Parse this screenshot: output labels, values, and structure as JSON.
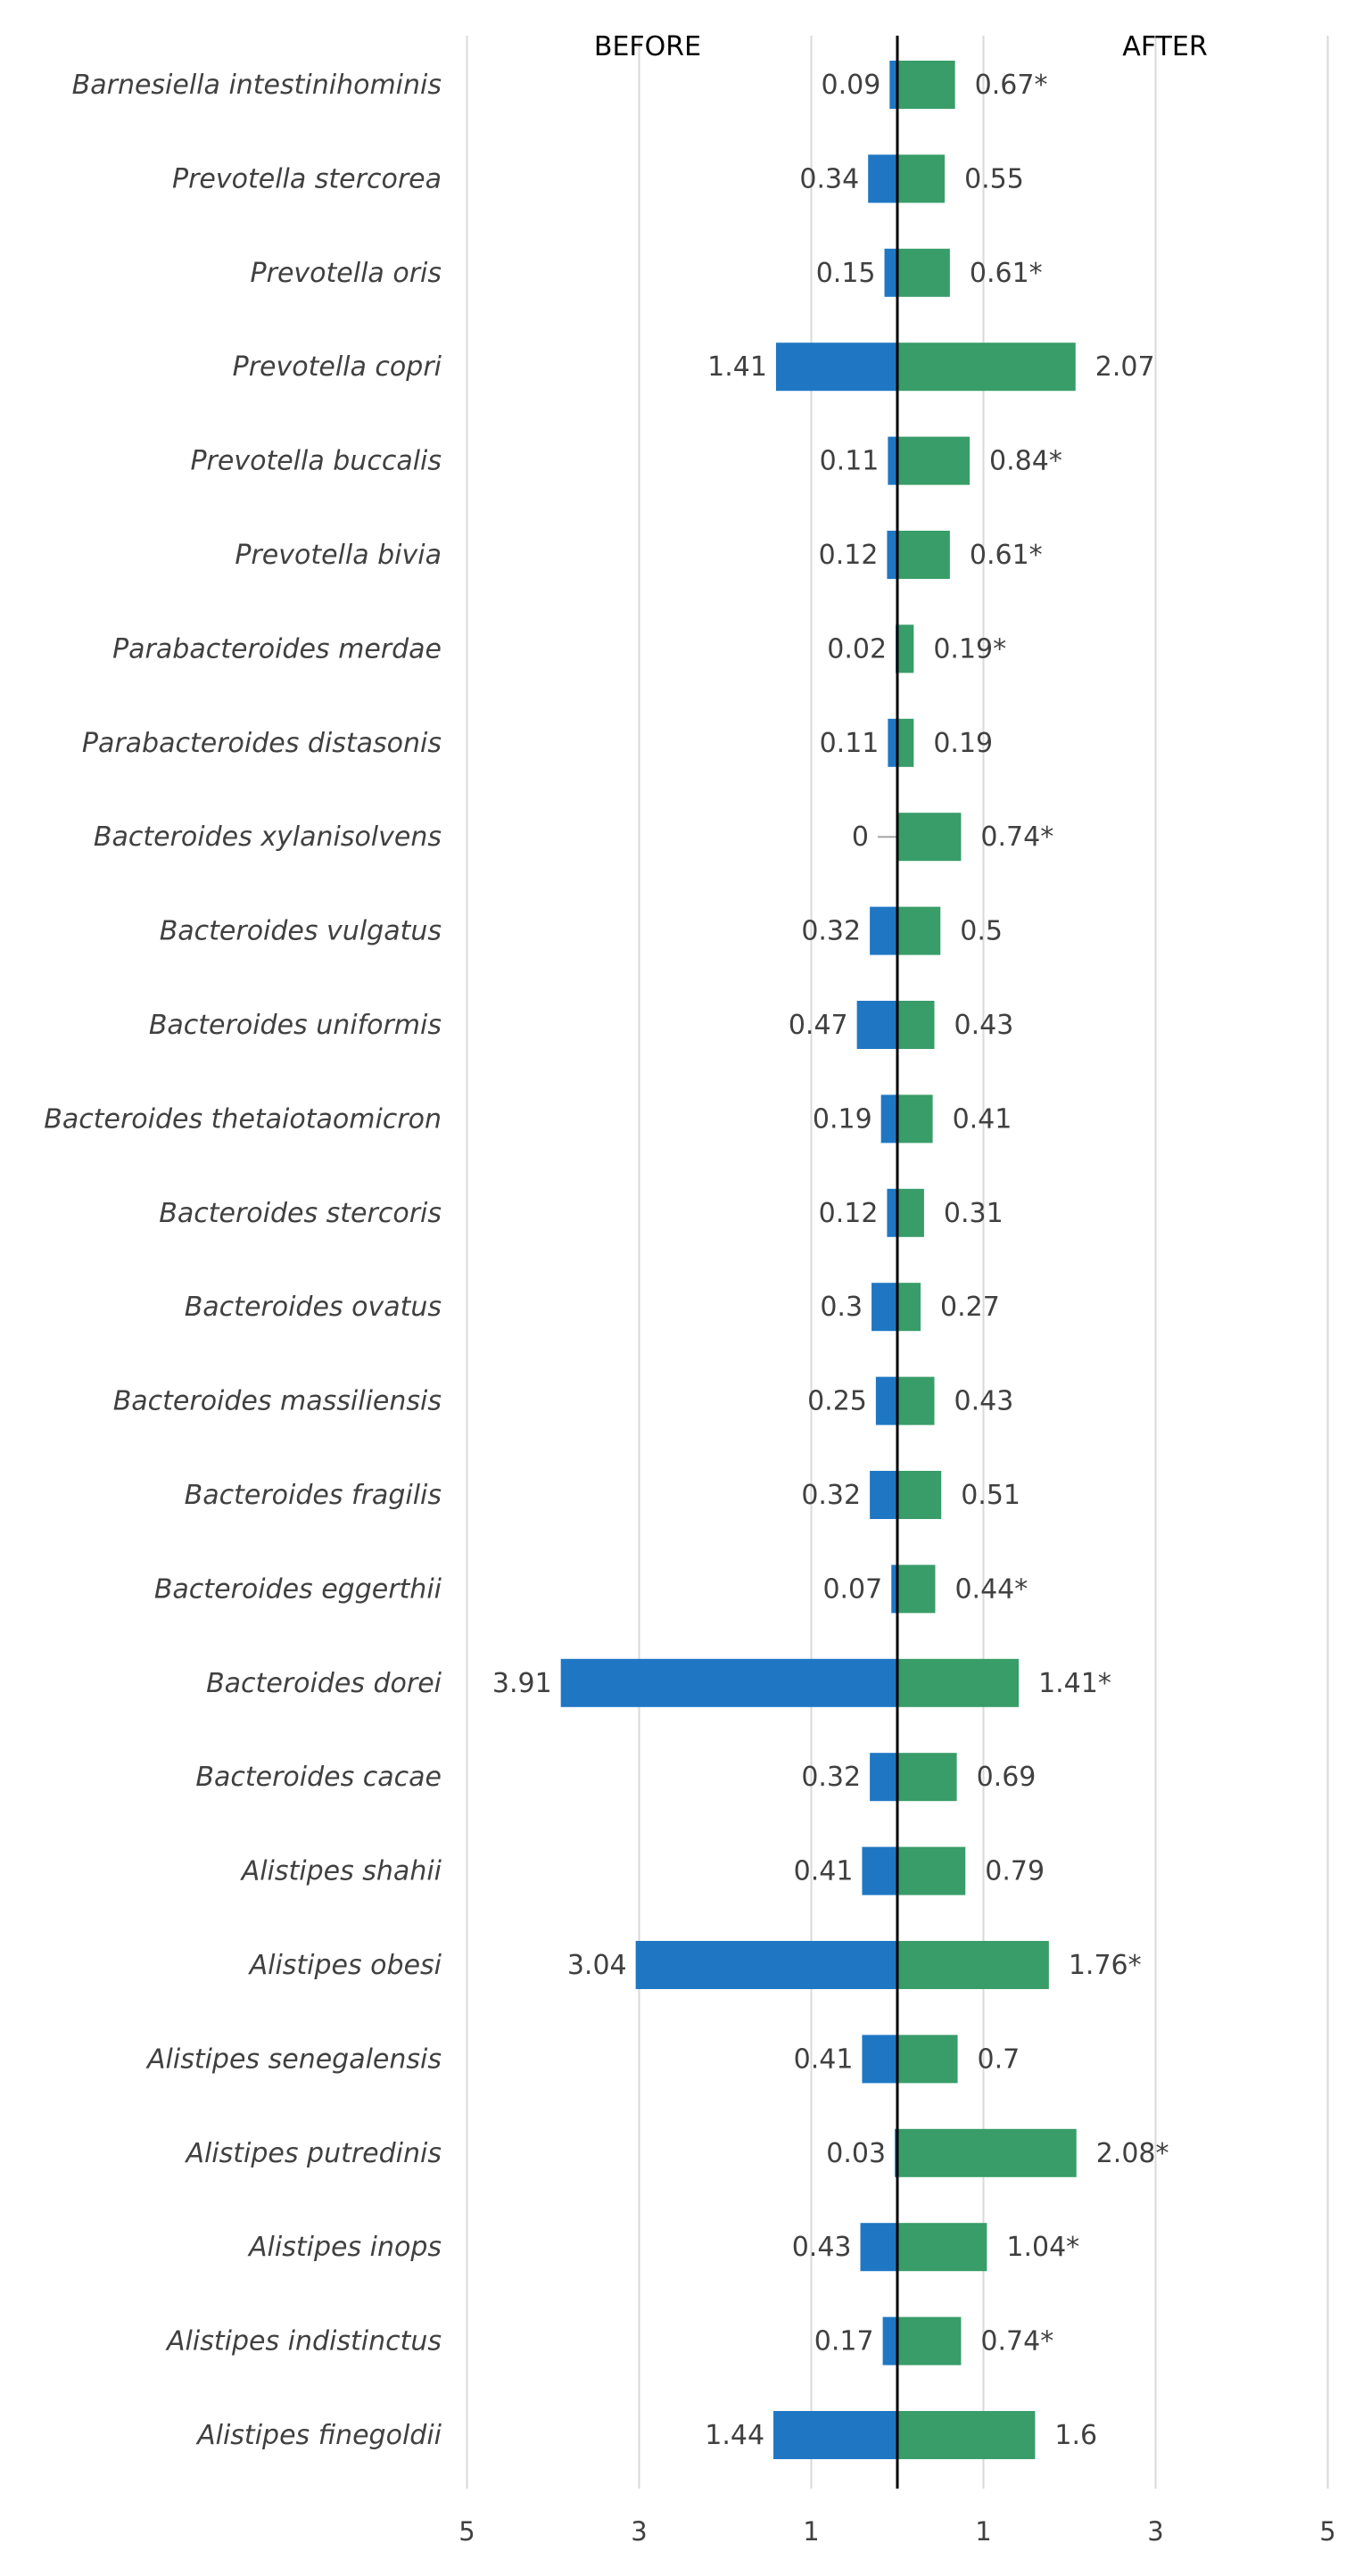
{
  "chart_data": {
    "type": "bar",
    "orientation": "horizontal",
    "layout": "diverging",
    "headers": {
      "before": "BEFORE",
      "after": "AFTER"
    },
    "categories": [
      "Barnesiella intestinihominis",
      "Prevotella stercorea",
      "Prevotella oris",
      "Prevotella copri",
      "Prevotella buccalis",
      "Prevotella bivia",
      "Parabacteroides merdae",
      "Parabacteroides distasonis",
      "Bacteroides xylanisolvens",
      "Bacteroides vulgatus",
      "Bacteroides uniformis",
      "Bacteroides thetaiotaomicron",
      "Bacteroides stercoris",
      "Bacteroides ovatus",
      "Bacteroides massiliensis",
      "Bacteroides fragilis",
      "Bacteroides eggerthii",
      "Bacteroides dorei",
      "Bacteroides cacae",
      "Alistipes shahii",
      "Alistipes obesi",
      "Alistipes senegalensis",
      "Alistipes putredinis",
      "Alistipes inops",
      "Alistipes indistinctus",
      "Alistipes finegoldii"
    ],
    "series": [
      {
        "name": "BEFORE",
        "color": "#1f77c4",
        "values": [
          0.09,
          0.34,
          0.15,
          1.41,
          0.11,
          0.12,
          0.02,
          0.11,
          0,
          0.32,
          0.47,
          0.19,
          0.12,
          0.3,
          0.25,
          0.32,
          0.07,
          3.91,
          0.32,
          0.41,
          3.04,
          0.41,
          0.03,
          0.43,
          0.17,
          1.44
        ],
        "labels": [
          "0.09",
          "0.34",
          "0.15",
          "1.41",
          "0.11",
          "0.12",
          "0.02",
          "0.11",
          "0",
          "0.32",
          "0.47",
          "0.19",
          "0.12",
          "0.3",
          "0.25",
          "0.32",
          "0.07",
          "3.91",
          "0.32",
          "0.41",
          "3.04",
          "0.41",
          "0.03",
          "0.43",
          "0.17",
          "1.44"
        ]
      },
      {
        "name": "AFTER",
        "color": "#389d68",
        "values": [
          0.67,
          0.55,
          0.61,
          2.07,
          0.84,
          0.61,
          0.19,
          0.19,
          0.74,
          0.5,
          0.43,
          0.41,
          0.31,
          0.27,
          0.43,
          0.51,
          0.44,
          1.41,
          0.69,
          0.79,
          1.76,
          0.7,
          2.08,
          1.04,
          0.74,
          1.6
        ],
        "labels": [
          "0.67*",
          "0.55",
          "0.61*",
          "2.07",
          "0.84*",
          "0.61*",
          "0.19*",
          "0.19",
          "0.74*",
          "0.5",
          "0.43",
          "0.41",
          "0.31",
          "0.27",
          "0.43",
          "0.51",
          "0.44*",
          "1.41*",
          "0.69",
          "0.79",
          "1.76*",
          "0.7",
          "2.08*",
          "1.04*",
          "0.74*",
          "1.6"
        ]
      }
    ],
    "xlim": [
      -5,
      5
    ],
    "x_ticks": [
      -5,
      -3,
      -1,
      1,
      3,
      5
    ],
    "x_tick_labels": [
      "5",
      "3",
      "1",
      "1",
      "3",
      "5"
    ],
    "grid": true
  }
}
